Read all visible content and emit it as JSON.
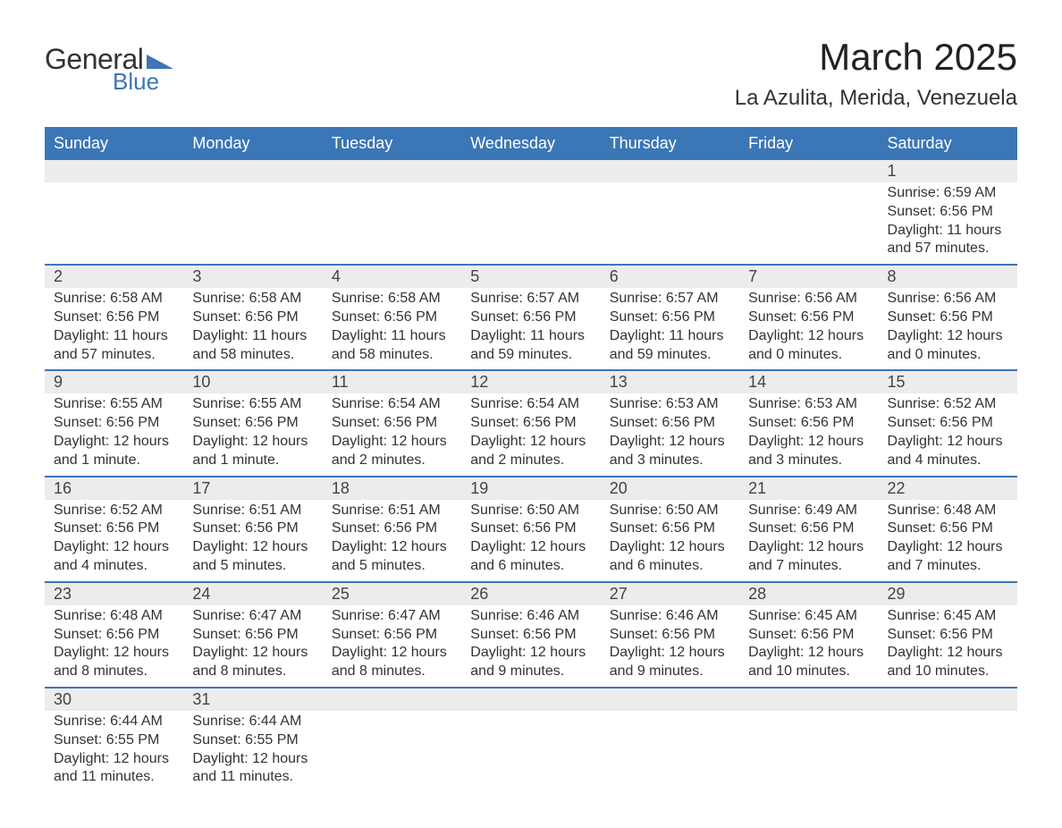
{
  "logo": {
    "line1": "General",
    "line2": "Blue",
    "triangle_color": "#3b76b6"
  },
  "title": "March 2025",
  "location": "La Azulita, Merida, Venezuela",
  "day_headers": [
    "Sunday",
    "Monday",
    "Tuesday",
    "Wednesday",
    "Thursday",
    "Friday",
    "Saturday"
  ],
  "colors": {
    "header_bg": "#3b76b6",
    "header_text": "#ffffff",
    "daynum_bg": "#ececec",
    "row_border": "#3b76b6",
    "body_text": "#333333"
  },
  "typography": {
    "title_fontsize": 42,
    "location_fontsize": 24,
    "header_fontsize": 18,
    "daynum_fontsize": 18,
    "cell_fontsize": 16
  },
  "weeks": [
    [
      null,
      null,
      null,
      null,
      null,
      null,
      {
        "n": "1",
        "sr": "Sunrise: 6:59 AM",
        "ss": "Sunset: 6:56 PM",
        "d1": "Daylight: 11 hours",
        "d2": "and 57 minutes."
      }
    ],
    [
      {
        "n": "2",
        "sr": "Sunrise: 6:58 AM",
        "ss": "Sunset: 6:56 PM",
        "d1": "Daylight: 11 hours",
        "d2": "and 57 minutes."
      },
      {
        "n": "3",
        "sr": "Sunrise: 6:58 AM",
        "ss": "Sunset: 6:56 PM",
        "d1": "Daylight: 11 hours",
        "d2": "and 58 minutes."
      },
      {
        "n": "4",
        "sr": "Sunrise: 6:58 AM",
        "ss": "Sunset: 6:56 PM",
        "d1": "Daylight: 11 hours",
        "d2": "and 58 minutes."
      },
      {
        "n": "5",
        "sr": "Sunrise: 6:57 AM",
        "ss": "Sunset: 6:56 PM",
        "d1": "Daylight: 11 hours",
        "d2": "and 59 minutes."
      },
      {
        "n": "6",
        "sr": "Sunrise: 6:57 AM",
        "ss": "Sunset: 6:56 PM",
        "d1": "Daylight: 11 hours",
        "d2": "and 59 minutes."
      },
      {
        "n": "7",
        "sr": "Sunrise: 6:56 AM",
        "ss": "Sunset: 6:56 PM",
        "d1": "Daylight: 12 hours",
        "d2": "and 0 minutes."
      },
      {
        "n": "8",
        "sr": "Sunrise: 6:56 AM",
        "ss": "Sunset: 6:56 PM",
        "d1": "Daylight: 12 hours",
        "d2": "and 0 minutes."
      }
    ],
    [
      {
        "n": "9",
        "sr": "Sunrise: 6:55 AM",
        "ss": "Sunset: 6:56 PM",
        "d1": "Daylight: 12 hours",
        "d2": "and 1 minute."
      },
      {
        "n": "10",
        "sr": "Sunrise: 6:55 AM",
        "ss": "Sunset: 6:56 PM",
        "d1": "Daylight: 12 hours",
        "d2": "and 1 minute."
      },
      {
        "n": "11",
        "sr": "Sunrise: 6:54 AM",
        "ss": "Sunset: 6:56 PM",
        "d1": "Daylight: 12 hours",
        "d2": "and 2 minutes."
      },
      {
        "n": "12",
        "sr": "Sunrise: 6:54 AM",
        "ss": "Sunset: 6:56 PM",
        "d1": "Daylight: 12 hours",
        "d2": "and 2 minutes."
      },
      {
        "n": "13",
        "sr": "Sunrise: 6:53 AM",
        "ss": "Sunset: 6:56 PM",
        "d1": "Daylight: 12 hours",
        "d2": "and 3 minutes."
      },
      {
        "n": "14",
        "sr": "Sunrise: 6:53 AM",
        "ss": "Sunset: 6:56 PM",
        "d1": "Daylight: 12 hours",
        "d2": "and 3 minutes."
      },
      {
        "n": "15",
        "sr": "Sunrise: 6:52 AM",
        "ss": "Sunset: 6:56 PM",
        "d1": "Daylight: 12 hours",
        "d2": "and 4 minutes."
      }
    ],
    [
      {
        "n": "16",
        "sr": "Sunrise: 6:52 AM",
        "ss": "Sunset: 6:56 PM",
        "d1": "Daylight: 12 hours",
        "d2": "and 4 minutes."
      },
      {
        "n": "17",
        "sr": "Sunrise: 6:51 AM",
        "ss": "Sunset: 6:56 PM",
        "d1": "Daylight: 12 hours",
        "d2": "and 5 minutes."
      },
      {
        "n": "18",
        "sr": "Sunrise: 6:51 AM",
        "ss": "Sunset: 6:56 PM",
        "d1": "Daylight: 12 hours",
        "d2": "and 5 minutes."
      },
      {
        "n": "19",
        "sr": "Sunrise: 6:50 AM",
        "ss": "Sunset: 6:56 PM",
        "d1": "Daylight: 12 hours",
        "d2": "and 6 minutes."
      },
      {
        "n": "20",
        "sr": "Sunrise: 6:50 AM",
        "ss": "Sunset: 6:56 PM",
        "d1": "Daylight: 12 hours",
        "d2": "and 6 minutes."
      },
      {
        "n": "21",
        "sr": "Sunrise: 6:49 AM",
        "ss": "Sunset: 6:56 PM",
        "d1": "Daylight: 12 hours",
        "d2": "and 7 minutes."
      },
      {
        "n": "22",
        "sr": "Sunrise: 6:48 AM",
        "ss": "Sunset: 6:56 PM",
        "d1": "Daylight: 12 hours",
        "d2": "and 7 minutes."
      }
    ],
    [
      {
        "n": "23",
        "sr": "Sunrise: 6:48 AM",
        "ss": "Sunset: 6:56 PM",
        "d1": "Daylight: 12 hours",
        "d2": "and 8 minutes."
      },
      {
        "n": "24",
        "sr": "Sunrise: 6:47 AM",
        "ss": "Sunset: 6:56 PM",
        "d1": "Daylight: 12 hours",
        "d2": "and 8 minutes."
      },
      {
        "n": "25",
        "sr": "Sunrise: 6:47 AM",
        "ss": "Sunset: 6:56 PM",
        "d1": "Daylight: 12 hours",
        "d2": "and 8 minutes."
      },
      {
        "n": "26",
        "sr": "Sunrise: 6:46 AM",
        "ss": "Sunset: 6:56 PM",
        "d1": "Daylight: 12 hours",
        "d2": "and 9 minutes."
      },
      {
        "n": "27",
        "sr": "Sunrise: 6:46 AM",
        "ss": "Sunset: 6:56 PM",
        "d1": "Daylight: 12 hours",
        "d2": "and 9 minutes."
      },
      {
        "n": "28",
        "sr": "Sunrise: 6:45 AM",
        "ss": "Sunset: 6:56 PM",
        "d1": "Daylight: 12 hours",
        "d2": "and 10 minutes."
      },
      {
        "n": "29",
        "sr": "Sunrise: 6:45 AM",
        "ss": "Sunset: 6:56 PM",
        "d1": "Daylight: 12 hours",
        "d2": "and 10 minutes."
      }
    ],
    [
      {
        "n": "30",
        "sr": "Sunrise: 6:44 AM",
        "ss": "Sunset: 6:55 PM",
        "d1": "Daylight: 12 hours",
        "d2": "and 11 minutes."
      },
      {
        "n": "31",
        "sr": "Sunrise: 6:44 AM",
        "ss": "Sunset: 6:55 PM",
        "d1": "Daylight: 12 hours",
        "d2": "and 11 minutes."
      },
      null,
      null,
      null,
      null,
      null
    ]
  ]
}
